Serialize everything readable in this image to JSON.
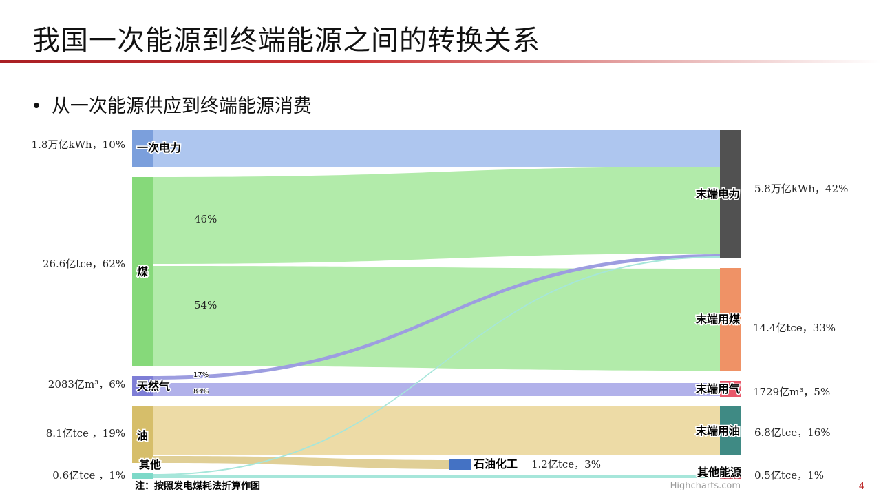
{
  "slide": {
    "title": "我国一次能源到终端能源之间的转换关系",
    "bullet_dot": "•",
    "bullet": "从一次能源供应到终端能源消费",
    "note": "注：按照发电煤耗法折算作图",
    "credit": "Highcharts.com",
    "page_number": "4"
  },
  "colors": {
    "title_rule": "#b3262b",
    "primary_power": "#7b9fdc",
    "coal": "#86d97a",
    "gas": "#7e7ed6",
    "oil": "#d6be6a",
    "other": "#7dd9c8",
    "end_power": "#515151",
    "end_coal": "#ef9266",
    "end_gas": "#e8586a",
    "end_oil": "#3f8a84",
    "end_other": "#c84758",
    "petrochem": "#4472c4"
  },
  "chart_data": {
    "type": "sankey",
    "nodes_left": [
      {
        "id": "primary_power",
        "name": "一次电力",
        "value_label": "1.8万亿kWh，10%"
      },
      {
        "id": "coal",
        "name": "煤",
        "value_label": "26.6亿tce，62%"
      },
      {
        "id": "gas",
        "name": "天然气",
        "value_label": "2083亿m³，6%"
      },
      {
        "id": "oil",
        "name": "油",
        "value_label": "8.1亿tce ，19%"
      },
      {
        "id": "other",
        "name": "其他",
        "value_label": "0.6亿tce ，1%"
      }
    ],
    "nodes_right": [
      {
        "id": "end_power",
        "name": "末端电力",
        "value_label": "5.8万亿kWh，42%"
      },
      {
        "id": "end_coal",
        "name": "末端用煤",
        "value_label": "14.4亿tce，33%"
      },
      {
        "id": "end_gas",
        "name": "末端用气",
        "value_label": "1729亿m³，5%"
      },
      {
        "id": "end_oil",
        "name": "末端用油",
        "value_label": "6.8亿tce，16%"
      },
      {
        "id": "end_other",
        "name": "其他能源",
        "value_label": "0.5亿tce，1%"
      }
    ],
    "petrochem": {
      "name": "石油化工",
      "value_label": "1.2亿tce，3%"
    },
    "flow_labels": {
      "coal_to_power": "46%",
      "coal_to_coal": "54%",
      "gas_to_power": "17%",
      "gas_to_gas": "83%"
    },
    "links": [
      {
        "from": "primary_power",
        "to": "end_power"
      },
      {
        "from": "coal",
        "to": "end_power",
        "share": 46
      },
      {
        "from": "coal",
        "to": "end_coal",
        "share": 54
      },
      {
        "from": "gas",
        "to": "end_power",
        "share": 17
      },
      {
        "from": "gas",
        "to": "end_gas",
        "share": 83
      },
      {
        "from": "oil",
        "to": "end_oil"
      },
      {
        "from": "oil",
        "to": "petrochem"
      },
      {
        "from": "other",
        "to": "end_power"
      },
      {
        "from": "other",
        "to": "end_other"
      }
    ]
  }
}
